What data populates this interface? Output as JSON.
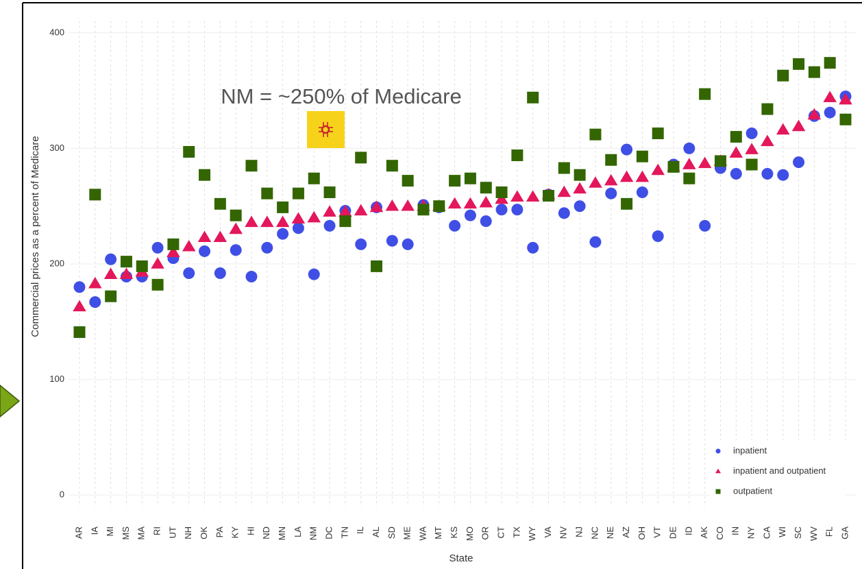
{
  "chart_data": {
    "type": "scatter",
    "annotation": "NM = ~250% of Medicare",
    "x_label": "State",
    "y_label": "Commercial prices as a percent of Medicare",
    "categories": [
      "AR",
      "IA",
      "MI",
      "MS",
      "MA",
      "RI",
      "UT",
      "NH",
      "OK",
      "PA",
      "KY",
      "HI",
      "ND",
      "MN",
      "LA",
      "NM",
      "DC",
      "TN",
      "IL",
      "AL",
      "SD",
      "ME",
      "WA",
      "MT",
      "KS",
      "MO",
      "OR",
      "CT",
      "TX",
      "WY",
      "VA",
      "NV",
      "NJ",
      "NC",
      "NE",
      "AZ",
      "OH",
      "VT",
      "DE",
      "ID",
      "AK",
      "CO",
      "IN",
      "NY",
      "CA",
      "WI",
      "SC",
      "WV",
      "FL",
      "GA"
    ],
    "series": [
      {
        "name": "inpatient",
        "color": "#3f4fe6",
        "marker": "circle",
        "values": [
          180,
          167,
          204,
          189,
          189,
          214,
          205,
          192,
          211,
          192,
          212,
          189,
          214,
          226,
          231,
          191,
          233,
          246,
          217,
          249,
          220,
          217,
          251,
          249,
          233,
          242,
          237,
          247,
          247,
          214,
          260,
          244,
          250,
          219,
          261,
          299,
          262,
          224,
          286,
          300,
          233,
          283,
          278,
          313,
          278,
          277,
          288,
          328,
          331,
          345
        ]
      },
      {
        "name": "inpatient and outpatient",
        "color": "#e3175a",
        "marker": "triangle",
        "values": [
          163,
          183,
          191,
          191,
          193,
          200,
          210,
          215,
          223,
          223,
          230,
          236,
          236,
          236,
          239,
          240,
          245,
          245,
          246,
          249,
          250,
          250,
          250,
          250,
          252,
          252,
          253,
          256,
          258,
          258,
          260,
          262,
          265,
          270,
          272,
          275,
          275,
          281,
          284,
          286,
          287,
          289,
          296,
          299,
          306,
          316,
          319,
          329,
          344,
          342
        ]
      },
      {
        "name": "outpatient",
        "color": "#336600",
        "marker": "square",
        "values": [
          141,
          260,
          172,
          202,
          198,
          182,
          217,
          297,
          277,
          252,
          242,
          285,
          261,
          249,
          261,
          274,
          262,
          237,
          292,
          198,
          285,
          272,
          247,
          250,
          272,
          274,
          266,
          262,
          294,
          344,
          259,
          283,
          277,
          312,
          290,
          252,
          293,
          313,
          284,
          274,
          347,
          289,
          310,
          286,
          334,
          363,
          373,
          366,
          374,
          325
        ]
      }
    ],
    "ylim": [
      -10,
      410
    ],
    "yticks": [
      0,
      100,
      200,
      300,
      400
    ],
    "grid": true,
    "legend": "bottom-right"
  }
}
